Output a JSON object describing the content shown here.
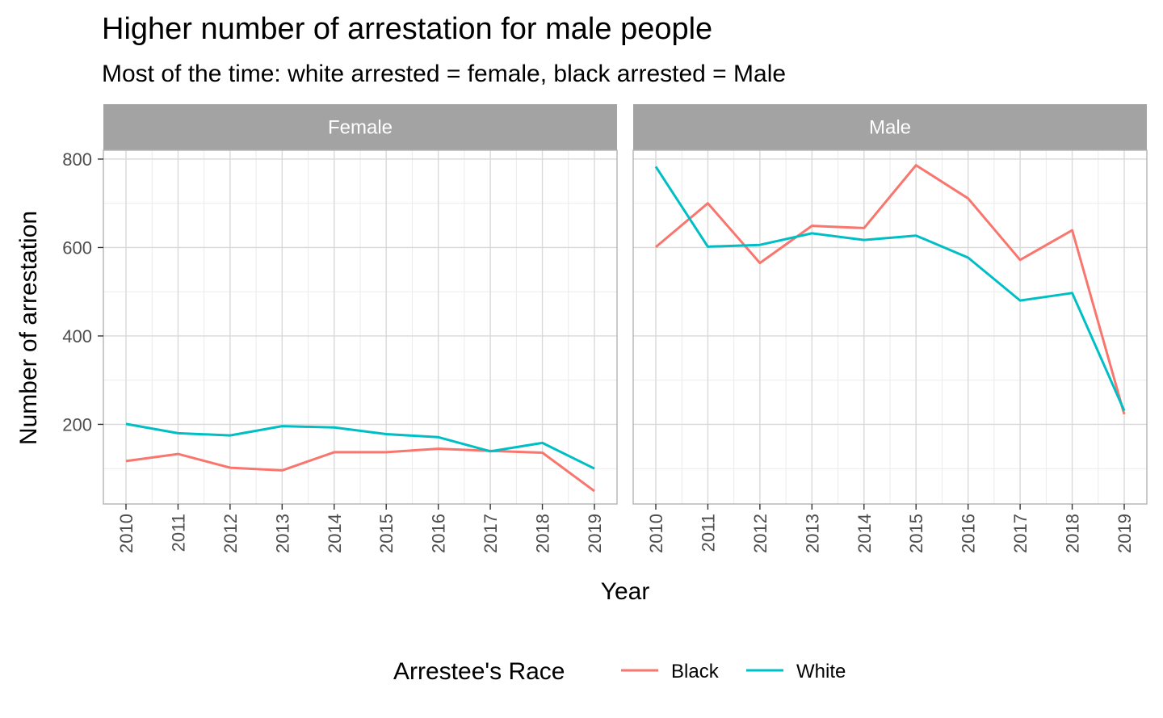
{
  "chart_data": {
    "type": "line",
    "title": "Higher number of arrestation for male people",
    "subtitle": "Most of the time: white arrested = female, black arrested = Male",
    "xlabel": "Year",
    "ylabel": "Number of arrestation",
    "x": [
      2010,
      2011,
      2012,
      2013,
      2014,
      2015,
      2016,
      2017,
      2018,
      2019
    ],
    "x_tick_labels": [
      "2010",
      "2011",
      "2012",
      "2013",
      "2014",
      "2015",
      "2016",
      "2017",
      "2018",
      "2019"
    ],
    "ylim": [
      20,
      820
    ],
    "y_ticks": [
      200,
      400,
      600,
      800
    ],
    "y_tick_labels": [
      "200",
      "400",
      "600",
      "800"
    ],
    "grid": true,
    "legend": {
      "title": "Arrestee's Race",
      "position": "bottom",
      "entries": [
        {
          "label": "Black",
          "color": "#F8766D"
        },
        {
          "label": "White",
          "color": "#00BFC4"
        }
      ]
    },
    "facets": [
      {
        "label": "Female",
        "series": [
          {
            "name": "Black",
            "color": "#F8766D",
            "values": [
              117,
              133,
              102,
              96,
              137,
              137,
              145,
              140,
              136,
              49
            ]
          },
          {
            "name": "White",
            "color": "#00BFC4",
            "values": [
              201,
              180,
              175,
              196,
              193,
              178,
              171,
              139,
              158,
              100
            ]
          }
        ]
      },
      {
        "label": "Male",
        "series": [
          {
            "name": "Black",
            "color": "#F8766D",
            "values": [
              601,
              700,
              565,
              649,
              644,
              786,
              711,
              572,
              639,
              223
            ]
          },
          {
            "name": "White",
            "color": "#00BFC4",
            "values": [
              783,
              602,
              606,
              632,
              617,
              627,
              577,
              480,
              497,
              231
            ]
          }
        ]
      }
    ]
  }
}
